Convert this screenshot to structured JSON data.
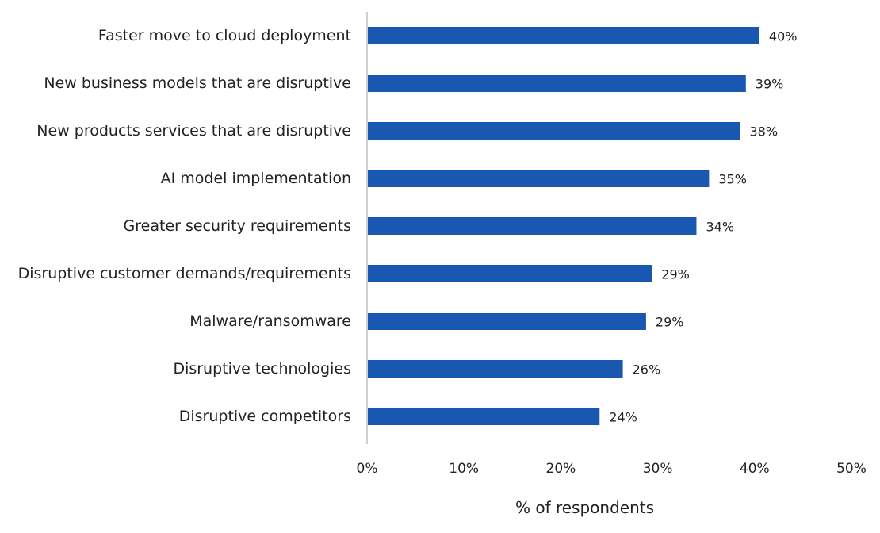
{
  "chart_data": {
    "type": "bar",
    "orientation": "horizontal",
    "categories": [
      "Faster move to cloud deployment",
      "New business models that are disruptive",
      "New products services that are disruptive",
      "AI model implementation",
      "Greater security requirements",
      "Disruptive customer demands/requirements",
      "Malware/ransomware",
      "Disruptive technologies",
      "Disruptive competitors"
    ],
    "values": [
      40.5,
      39.1,
      38.5,
      35.3,
      34,
      29.4,
      28.8,
      26.4,
      24
    ],
    "value_labels": [
      "40%",
      "39%",
      "38%",
      "35%",
      "34%",
      "29%",
      "29%",
      "26%",
      "24%"
    ],
    "xlim": [
      0,
      50
    ],
    "xticks": [
      0,
      10,
      20,
      30,
      40,
      50
    ],
    "xtick_labels": [
      "0%",
      "10%",
      "20%",
      "30%",
      "40%",
      "50%"
    ],
    "xlabel": "% of respondents",
    "ylabel": "",
    "title": "",
    "grid": false,
    "bar_color": "#1957b0",
    "axis_line_color": "#cfcfcf"
  }
}
